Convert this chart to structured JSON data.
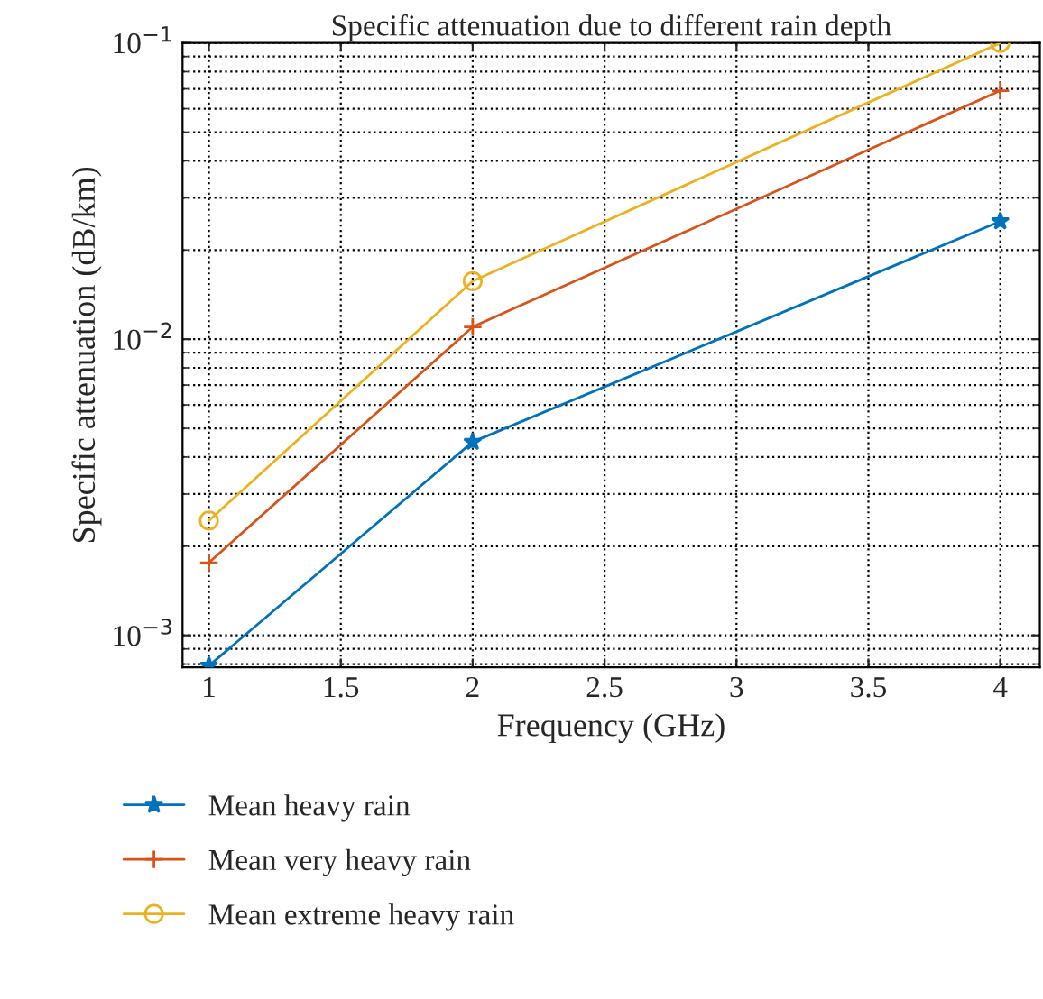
{
  "chart_data": {
    "type": "line",
    "title": "Specific attenuation due to different rain depth",
    "xlabel": "Frequency (GHz)",
    "ylabel": "Specific attenuation (dB/km)",
    "x": [
      1,
      2,
      4
    ],
    "series": [
      {
        "name": "Mean heavy rain",
        "color": "#0072bd",
        "marker": "star",
        "values": [
          0.00079,
          0.0045,
          0.025
        ]
      },
      {
        "name": "Mean very heavy rain",
        "color": "#d95319",
        "marker": "cross",
        "values": [
          0.00176,
          0.011,
          0.069
        ]
      },
      {
        "name": "Mean extreme heavy rain",
        "color": "#edb120",
        "marker": "circle",
        "values": [
          0.00244,
          0.0157,
          0.1
        ]
      }
    ],
    "log": "y",
    "xlim": [
      0.9,
      4.15
    ],
    "xticks": [
      1,
      1.5,
      2,
      2.5,
      3,
      3.5,
      4
    ],
    "ylim": [
      0.00078,
      0.1
    ],
    "yticks": [
      {
        "value": 0.001,
        "label": "10$^{−3}$"
      },
      {
        "value": 0.01,
        "label": "10$^{−2}$"
      },
      {
        "value": 0.1,
        "label": "10$^{−1}$"
      }
    ],
    "grid": true,
    "legend": "bottom",
    "line_style": "solid"
  }
}
